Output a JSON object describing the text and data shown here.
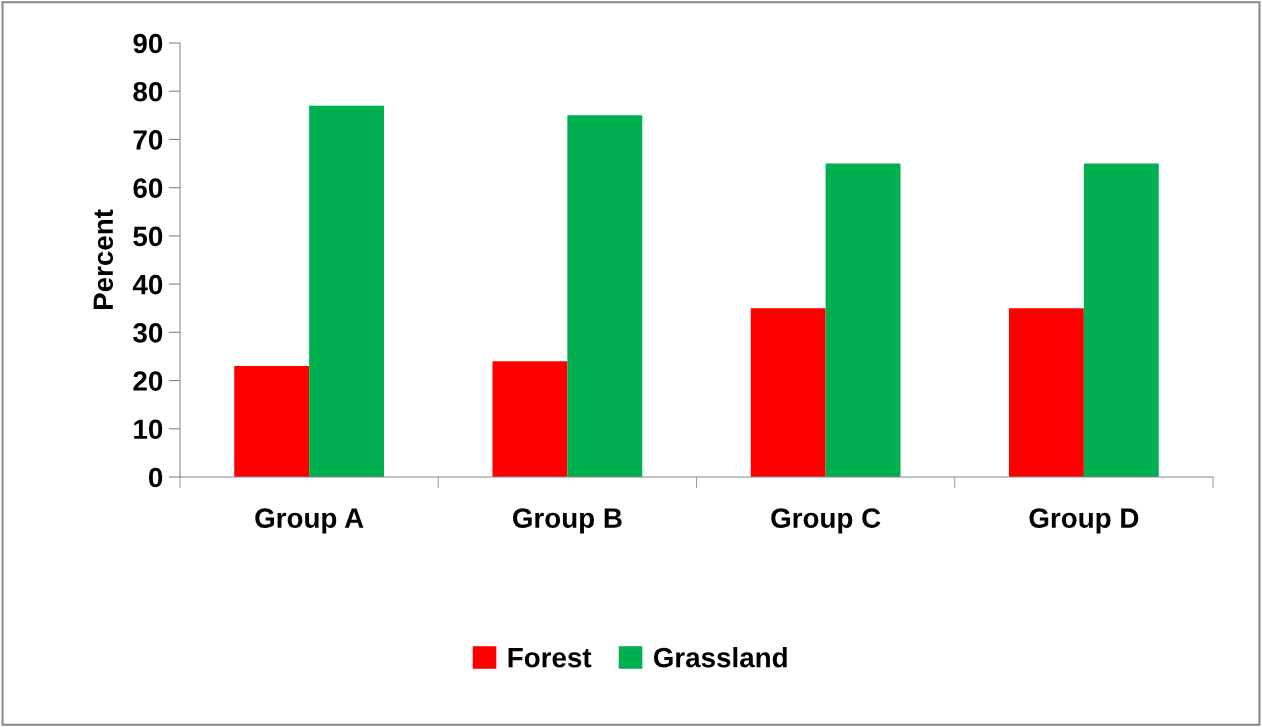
{
  "chart_data": {
    "type": "bar",
    "ylabel": "Percent",
    "categories": [
      "Group A",
      "Group B",
      "Group C",
      "Group D"
    ],
    "series": [
      {
        "name": "Forest",
        "color": "#ff0000",
        "values": [
          23,
          24,
          35,
          35
        ]
      },
      {
        "name": "Grassland",
        "color": "#00b050",
        "values": [
          77,
          75,
          65,
          65
        ]
      }
    ],
    "ylim": [
      0,
      90
    ],
    "yticks": [
      0,
      10,
      20,
      30,
      40,
      50,
      60,
      70,
      80,
      90
    ],
    "grid": false,
    "legend": "bottom"
  }
}
